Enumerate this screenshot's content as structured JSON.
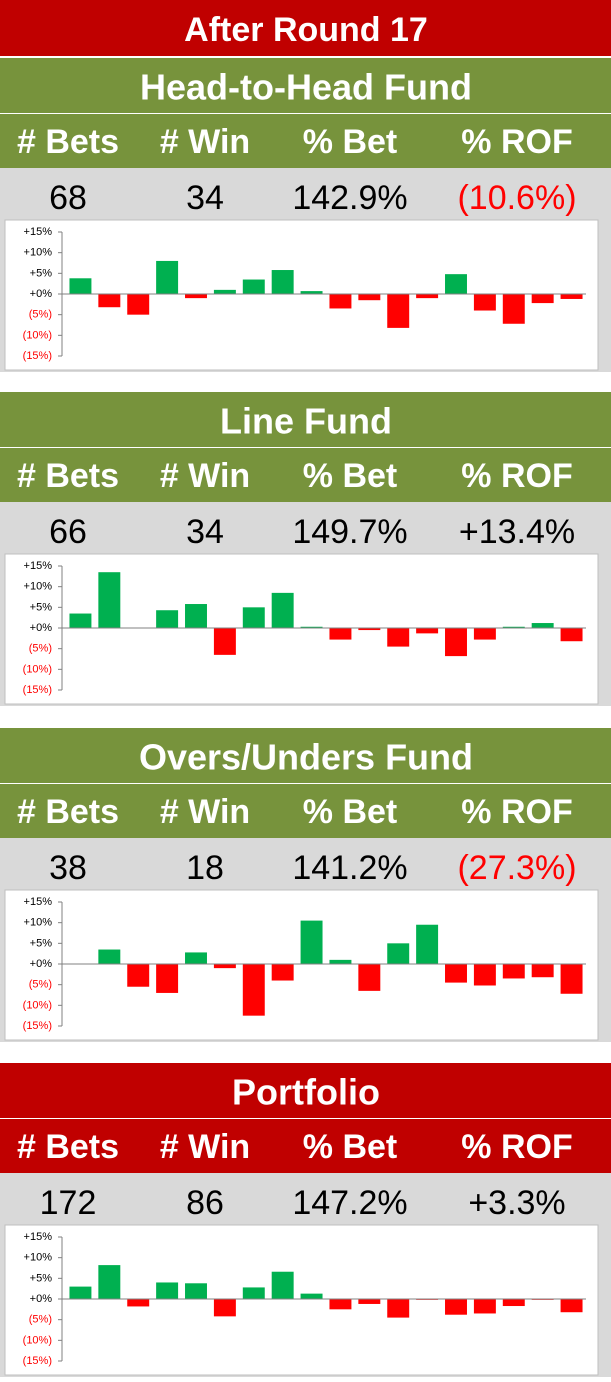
{
  "title": "After Round  17",
  "title_color": "#c00000",
  "sections": [
    {
      "name": "Head-to-Head Fund",
      "header_color": "#77933c",
      "columns": [
        "# Bets",
        "# Win",
        "% Bet",
        "% ROF"
      ],
      "stats": [
        "68",
        "34",
        "142.9%",
        "(10.6%)"
      ],
      "stat_colors": [
        "#000000",
        "#000000",
        "#000000",
        "#ff0000"
      ]
    },
    {
      "name": "Line Fund",
      "header_color": "#77933c",
      "columns": [
        "# Bets",
        "# Win",
        "% Bet",
        "% ROF"
      ],
      "stats": [
        "66",
        "34",
        "149.7%",
        "+13.4%"
      ],
      "stat_colors": [
        "#000000",
        "#000000",
        "#000000",
        "#000000"
      ]
    },
    {
      "name": "Overs/Unders Fund",
      "header_color": "#77933c",
      "columns": [
        "# Bets",
        "# Win",
        "% Bet",
        "% ROF"
      ],
      "stats": [
        "38",
        "18",
        "141.2%",
        "(27.3%)"
      ],
      "stat_colors": [
        "#000000",
        "#000000",
        "#000000",
        "#ff0000"
      ]
    },
    {
      "name": "Portfolio",
      "header_color": "#c00000",
      "columns": [
        "# Bets",
        "# Win",
        "% Bet",
        "% ROF"
      ],
      "stats": [
        "172",
        "86",
        "147.2%",
        "+3.3%"
      ],
      "stat_colors": [
        "#000000",
        "#000000",
        "#000000",
        "#000000"
      ]
    }
  ],
  "chart_data": [
    {
      "type": "bar",
      "positive_color": "#00b050",
      "negative_color": "#ff0000",
      "ylim": [
        -15,
        15
      ],
      "yticks": [
        {
          "value": 15,
          "label": "+15%"
        },
        {
          "value": 10,
          "label": "+10%"
        },
        {
          "value": 5,
          "label": "+5%"
        },
        {
          "value": 0,
          "label": "+0%"
        },
        {
          "value": -5,
          "label": "(5%)"
        },
        {
          "value": -10,
          "label": "(10%)"
        },
        {
          "value": -15,
          "label": "(15%)"
        }
      ],
      "values": [
        3.8,
        -3.2,
        -5,
        8,
        -1,
        1,
        3.5,
        5.8,
        0.7,
        -3.5,
        -1.5,
        -8.2,
        -1,
        4.8,
        -4,
        -7.2,
        -2.2,
        -1.2
      ]
    },
    {
      "type": "bar",
      "positive_color": "#00b050",
      "negative_color": "#ff0000",
      "ylim": [
        -15,
        15
      ],
      "yticks": [
        {
          "value": 15,
          "label": "+15%"
        },
        {
          "value": 10,
          "label": "+10%"
        },
        {
          "value": 5,
          "label": "+5%"
        },
        {
          "value": 0,
          "label": "+0%"
        },
        {
          "value": -5,
          "label": "(5%)"
        },
        {
          "value": -10,
          "label": "(10%)"
        },
        {
          "value": -15,
          "label": "(15%)"
        }
      ],
      "values": [
        3.5,
        13.5,
        0,
        4.3,
        5.8,
        -6.5,
        5,
        8.5,
        0.3,
        -2.8,
        -0.5,
        -4.5,
        -1.3,
        -6.8,
        -2.8,
        0.3,
        1.2,
        -3.2
      ]
    },
    {
      "type": "bar",
      "positive_color": "#00b050",
      "negative_color": "#ff0000",
      "ylim": [
        -15,
        15
      ],
      "yticks": [
        {
          "value": 15,
          "label": "+15%"
        },
        {
          "value": 10,
          "label": "+10%"
        },
        {
          "value": 5,
          "label": "+5%"
        },
        {
          "value": 0,
          "label": "+0%"
        },
        {
          "value": -5,
          "label": "(5%)"
        },
        {
          "value": -10,
          "label": "(10%)"
        },
        {
          "value": -15,
          "label": "(15%)"
        }
      ],
      "values": [
        0,
        3.5,
        -5.5,
        -7,
        2.8,
        -1,
        -12.5,
        -4,
        10.5,
        1,
        -6.5,
        5,
        9.5,
        -4.5,
        -5.2,
        -3.5,
        -3.2,
        -7.2
      ]
    },
    {
      "type": "bar",
      "positive_color": "#00b050",
      "negative_color": "#ff0000",
      "ylim": [
        -15,
        15
      ],
      "yticks": [
        {
          "value": 15,
          "label": "+15%"
        },
        {
          "value": 10,
          "label": "+10%"
        },
        {
          "value": 5,
          "label": "+5%"
        },
        {
          "value": 0,
          "label": "+0%"
        },
        {
          "value": -5,
          "label": "(5%)"
        },
        {
          "value": -10,
          "label": "(10%)"
        },
        {
          "value": -15,
          "label": "(15%)"
        }
      ],
      "values": [
        3,
        8.2,
        -1.8,
        4,
        3.8,
        -4.2,
        2.8,
        6.6,
        1.3,
        -2.5,
        -1.2,
        -4.5,
        -0.2,
        -3.8,
        -3.5,
        -1.7,
        -0.2,
        -3.2
      ]
    }
  ]
}
